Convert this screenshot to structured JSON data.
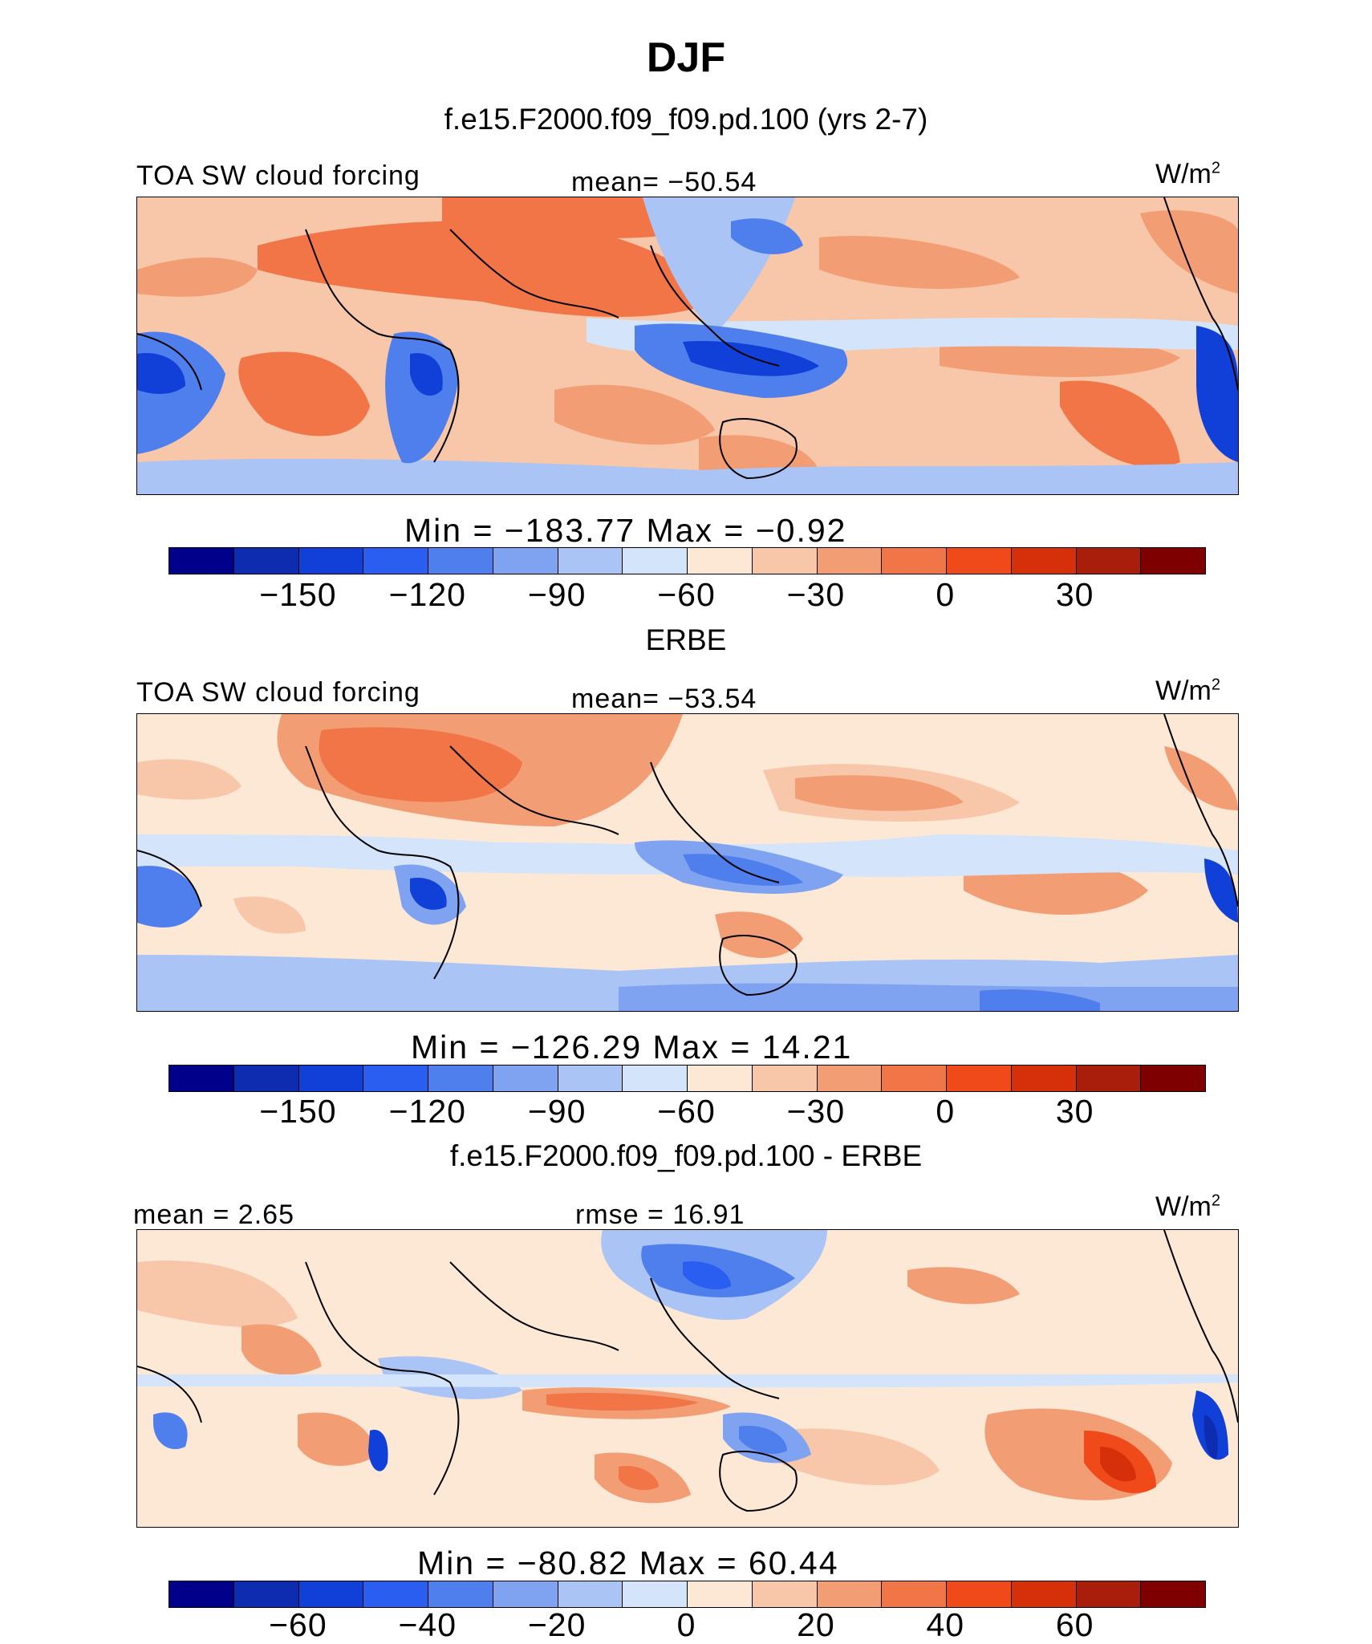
{
  "figure": {
    "season": "DJF",
    "panel1": {
      "subtitle": "f.e15.F2000.f09_f09.pd.100 (yrs 2-7)",
      "left_label": "TOA SW cloud forcing",
      "center_label": "mean=  −50.54",
      "unit_base": "W/m",
      "unit_exp": "2",
      "minmax": "Min  =  −183.77  Max  =    −0.92"
    },
    "panel2": {
      "subtitle": "ERBE",
      "left_label": "TOA SW cloud forcing",
      "center_label": "mean=  −53.54",
      "unit_base": "W/m",
      "unit_exp": "2",
      "minmax": "Min  =  −126.29  Max  =    14.21"
    },
    "panel3": {
      "subtitle": "f.e15.F2000.f09_f09.pd.100 - ERBE",
      "left_label": "mean  =    2.65",
      "center_label": "rmse  =   16.91",
      "unit_base": "W/m",
      "unit_exp": "2",
      "minmax": "Min  =  −80.82  Max  =    60.44"
    },
    "colorbar_abs_ticks": [
      "−150",
      "−120",
      "−90",
      "−60",
      "−30",
      "0",
      "30"
    ],
    "colorbar_diff_ticks": [
      "−60",
      "−40",
      "−20",
      "0",
      "20",
      "40",
      "60"
    ],
    "colorbar_colors": [
      "#00008b",
      "#0d2cb0",
      "#1040d8",
      "#2a5ef0",
      "#4f7fec",
      "#7fa3f0",
      "#a9c4f5",
      "#d4e4fb",
      "#fde8d6",
      "#f8c6a8",
      "#f39d75",
      "#f27547",
      "#f04a1a",
      "#d6300a",
      "#a81e0a",
      "#7f0000"
    ]
  }
}
